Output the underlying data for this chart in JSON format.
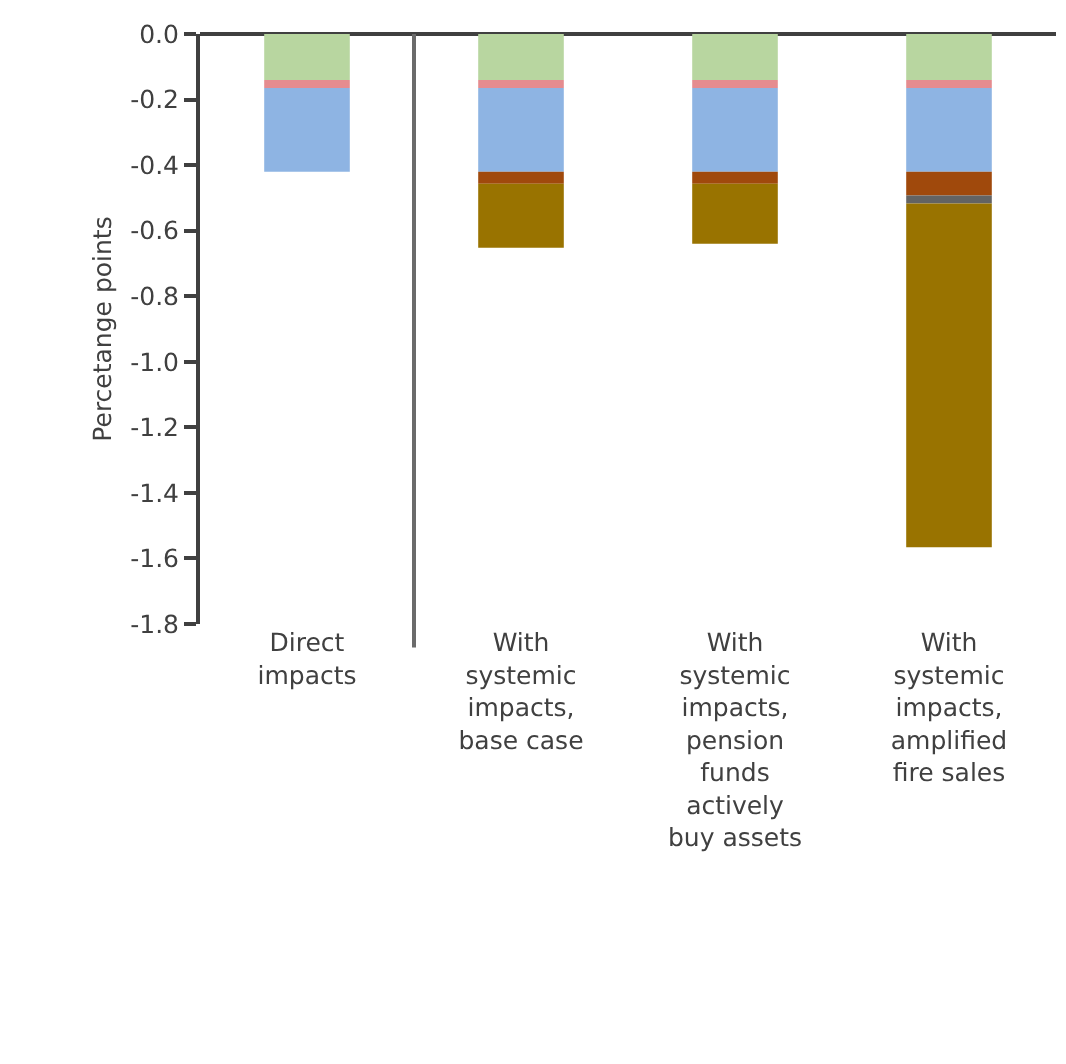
{
  "chart_data": {
    "type": "bar",
    "stacked": true,
    "ylabel": "Percetange points",
    "categories": [
      "Direct impacts",
      "With systemic impacts, base case",
      "With systemic impacts, pension funds actively buy assets",
      "With systemic impacts, amplified fire sales"
    ],
    "series": [
      {
        "color": "#b8d6a0",
        "values": [
          -0.14,
          -0.14,
          -0.14,
          -0.14
        ]
      },
      {
        "color": "#e58c8f",
        "values": [
          -0.025,
          -0.025,
          -0.025,
          -0.025
        ]
      },
      {
        "color": "#8eb4e3",
        "values": [
          -0.255,
          -0.255,
          -0.255,
          -0.255
        ]
      },
      {
        "color": "#a0490c",
        "values": [
          null,
          -0.037,
          -0.037,
          -0.073
        ]
      },
      {
        "color": "#636363",
        "values": [
          null,
          null,
          null,
          -0.024
        ]
      },
      {
        "color": "#997300",
        "values": [
          null,
          -0.195,
          -0.183,
          -1.049
        ]
      }
    ],
    "ylim": [
      -1.8,
      0
    ],
    "yticks": [
      {
        "value": 0,
        "label": "0.0"
      },
      {
        "value": -0.2,
        "label": "-0.2"
      },
      {
        "value": -0.4,
        "label": "-0.4"
      },
      {
        "value": -0.6,
        "label": "-0.6"
      },
      {
        "value": -0.8,
        "label": "-0.8"
      },
      {
        "value": -1,
        "label": "-1.0"
      },
      {
        "value": -1.2,
        "label": "-1.2"
      },
      {
        "value": -1.4,
        "label": "-1.4"
      },
      {
        "value": -1.6,
        "label": "-1.6"
      },
      {
        "value": -1.8,
        "label": "-1.8"
      }
    ],
    "grid": false
  }
}
